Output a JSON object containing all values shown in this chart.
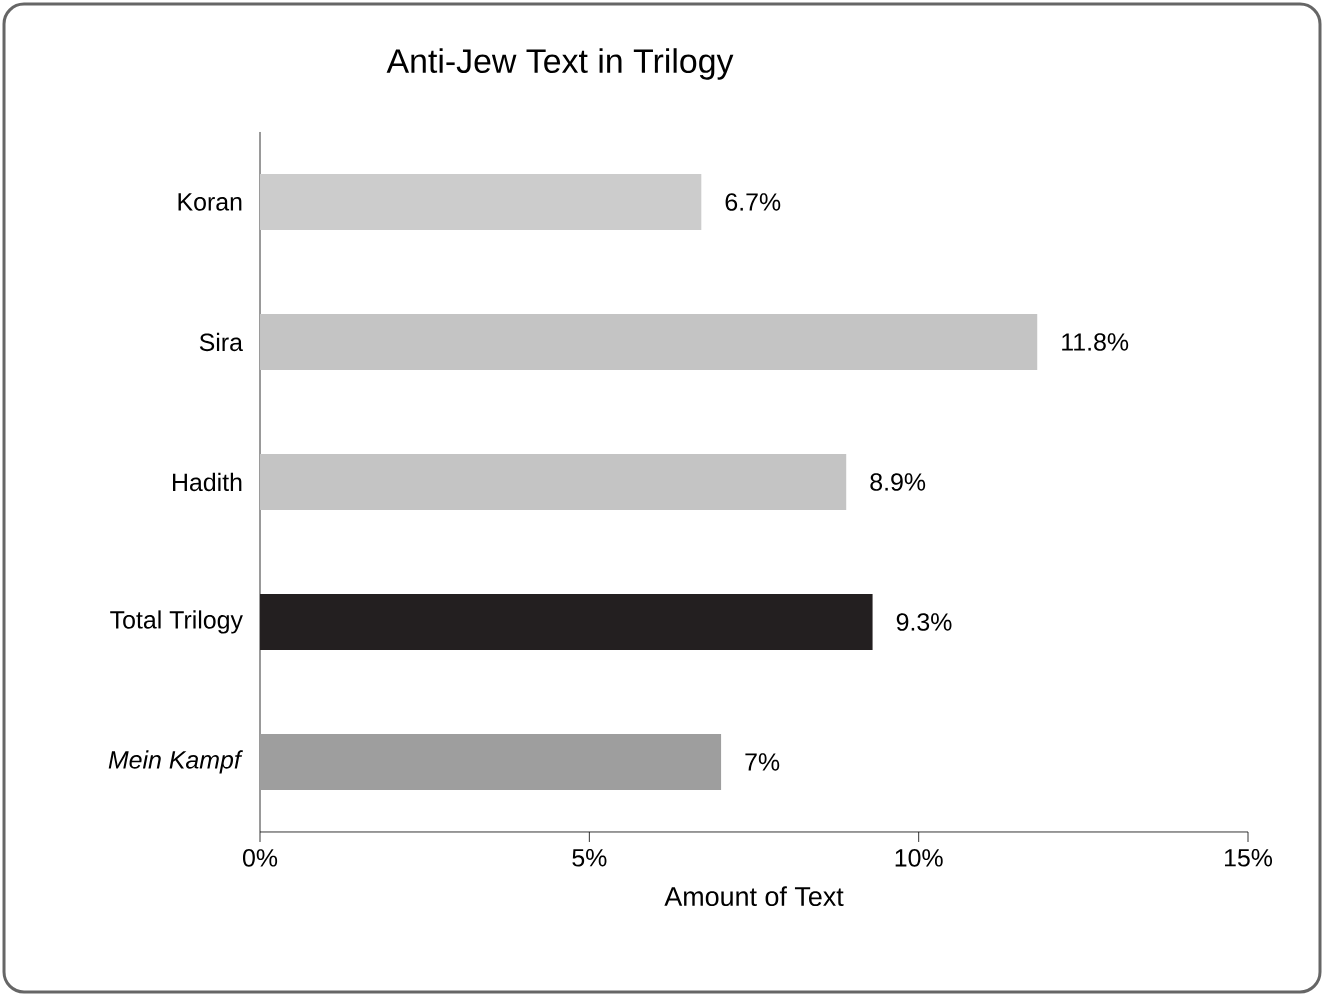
{
  "chart_data": {
    "type": "bar",
    "orientation": "horizontal",
    "title": "Anti-Jew Text in Trilogy",
    "xlabel": "Amount of Text",
    "categories": [
      "Koran",
      "Sira",
      "Hadith",
      "Total Trilogy",
      "*Mein Kampf*"
    ],
    "values": [
      6.7,
      11.8,
      8.9,
      9.3,
      7
    ],
    "colors": [
      "#cccccc",
      "#c4c4c4",
      "#c4c4c4",
      "#231f20",
      "#9e9e9e"
    ],
    "value_labels": [
      "6.7%",
      "11.8%",
      "8.9%",
      "9.3%",
      "7%"
    ],
    "xlim": [
      0,
      15
    ],
    "xticks": [
      {
        "value": 0,
        "label": "0%"
      },
      {
        "value": 5,
        "label": "5%"
      },
      {
        "value": 10,
        "label": "10%"
      },
      {
        "value": 15,
        "label": "15%"
      }
    ]
  }
}
